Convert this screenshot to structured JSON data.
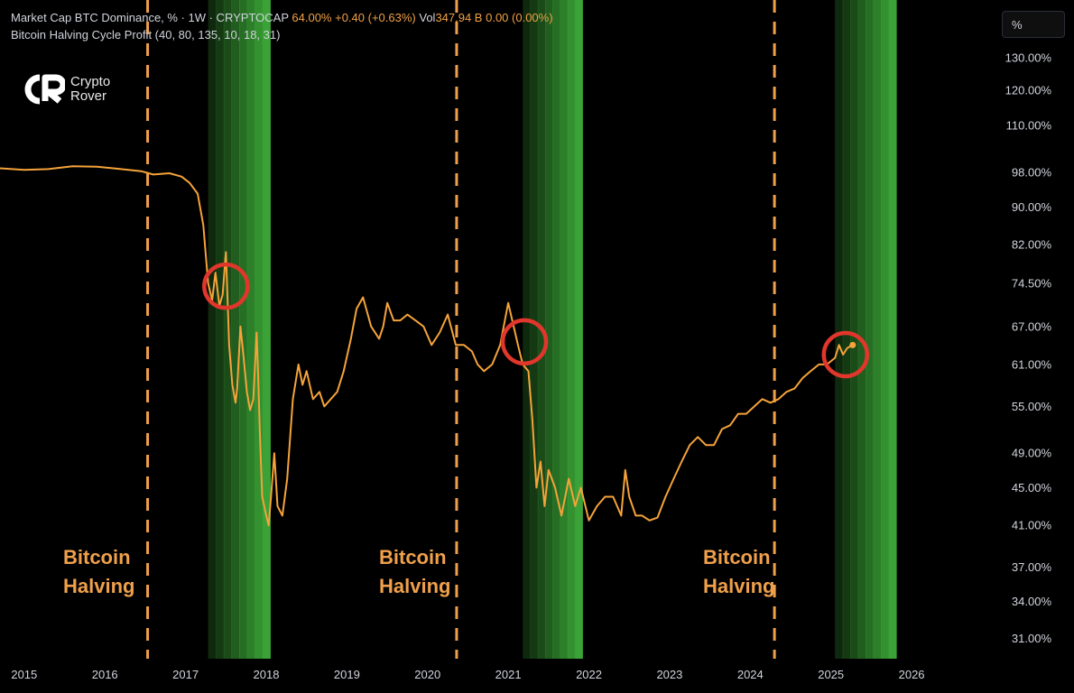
{
  "legend": {
    "line1_prefix": "Market Cap BTC Dominance, % · 1W · CRYPTOCAP",
    "last_value": "64.00%",
    "change": "+0.40 (+0.63%)",
    "vol_label": "Vol",
    "vol_value": "347.94 B",
    "vol_change": "0.00 (0.00%)",
    "line2": "Bitcoin Halving Cycle Profit (40, 80, 135, 10, 18, 31)"
  },
  "logo": {
    "line1": "Crypto",
    "line2": "Rover",
    "icon": "cr-logo-icon"
  },
  "scale_button": "%",
  "halving_labels": [
    {
      "line1": "Bitcoin",
      "line2": "Halving"
    },
    {
      "line1": "Bitcoin",
      "line2": "Halving"
    },
    {
      "line1": "Bitcoin",
      "line2": "Halving"
    }
  ],
  "chart_data": {
    "type": "line",
    "title": "Market Cap BTC Dominance, % · 1W · CRYPTOCAP",
    "y_scale": "log",
    "y_ticks": [
      "130.00%",
      "120.00%",
      "110.00%",
      "98.00%",
      "90.00%",
      "82.00%",
      "74.50%",
      "67.00%",
      "61.00%",
      "55.00%",
      "49.00%",
      "45.00%",
      "41.00%",
      "37.00%",
      "34.00%",
      "31.00%"
    ],
    "y_tick_values": [
      130,
      120,
      110,
      98,
      90,
      82,
      74.5,
      67,
      61,
      55,
      49,
      45,
      41,
      37,
      34,
      31
    ],
    "ylim": [
      29.5,
      150
    ],
    "x_ticks": [
      "2015",
      "2016",
      "2017",
      "2018",
      "2019",
      "2020",
      "2021",
      "2022",
      "2023",
      "2024",
      "2025",
      "2026"
    ],
    "x_tick_values": [
      2015,
      2016,
      2017,
      2018,
      2019,
      2020,
      2021,
      2022,
      2023,
      2024,
      2025,
      2026
    ],
    "xlim": [
      2014.7,
      2026.95
    ],
    "series_color": "#f5a33a",
    "series": [
      {
        "x": [
          2014.7,
          2015.0,
          2015.3,
          2015.6,
          2015.9,
          2016.2,
          2016.45,
          2016.6,
          2016.8,
          2016.95,
          2017.05,
          2017.15,
          2017.22,
          2017.28,
          2017.33,
          2017.37,
          2017.42,
          2017.46,
          2017.5,
          2017.54,
          2017.58,
          2017.62,
          2017.64,
          2017.68,
          2017.72,
          2017.76,
          2017.8,
          2017.84,
          2017.88,
          2017.9,
          2017.92,
          2017.95,
          2018.0,
          2018.03,
          2018.06,
          2018.1,
          2018.14,
          2018.2,
          2018.26,
          2018.33,
          2018.4,
          2018.45,
          2018.5,
          2018.58,
          2018.66,
          2018.72,
          2018.8,
          2018.88,
          2018.96,
          2019.05,
          2019.12,
          2019.2,
          2019.3,
          2019.4,
          2019.45,
          2019.5,
          2019.58,
          2019.66,
          2019.75,
          2019.85,
          2019.95,
          2020.05,
          2020.15,
          2020.25,
          2020.35,
          2020.45,
          2020.55,
          2020.62,
          2020.7,
          2020.8,
          2020.9,
          2021.0,
          2021.05,
          2021.12,
          2021.18,
          2021.25,
          2021.3,
          2021.35,
          2021.4,
          2021.45,
          2021.5,
          2021.58,
          2021.66,
          2021.75,
          2021.83,
          2021.9,
          2022.0,
          2022.1,
          2022.2,
          2022.3,
          2022.4,
          2022.45,
          2022.5,
          2022.58,
          2022.66,
          2022.75,
          2022.85,
          2022.95,
          2023.05,
          2023.15,
          2023.25,
          2023.35,
          2023.45,
          2023.55,
          2023.65,
          2023.75,
          2023.85,
          2023.95,
          2024.05,
          2024.15,
          2024.25,
          2024.35,
          2024.45,
          2024.55,
          2024.65,
          2024.75,
          2024.85,
          2024.95,
          2025.05,
          2025.1,
          2025.15,
          2025.2,
          2025.27
        ],
        "y": [
          99,
          98.6,
          98.8,
          99.5,
          99.4,
          98.8,
          98.3,
          97.5,
          97.8,
          97.0,
          95.5,
          93.0,
          86,
          74.5,
          71.5,
          76.5,
          70.5,
          72.5,
          80.5,
          64,
          58,
          55.5,
          57.5,
          67,
          62,
          57,
          54.5,
          56,
          66,
          59.5,
          52,
          44,
          42,
          41,
          44,
          49,
          43,
          42,
          46,
          56,
          61,
          58,
          60,
          56,
          57,
          55,
          56,
          57,
          60,
          65,
          70,
          72,
          67,
          65,
          67,
          71,
          68,
          68,
          69,
          68,
          67,
          64,
          66,
          69,
          64,
          64,
          63,
          61,
          60,
          61,
          64,
          71,
          68,
          64,
          61,
          60,
          53,
          45,
          48,
          43,
          47,
          45,
          42,
          46,
          43,
          45,
          41.5,
          43,
          44,
          44,
          42,
          47,
          44,
          42,
          42,
          41.5,
          41.8,
          44,
          46,
          48,
          50,
          51,
          50,
          50,
          52,
          52.5,
          54,
          54,
          55,
          56,
          55.5,
          56,
          57,
          57.5,
          59,
          60,
          61,
          61,
          62,
          64,
          62.5,
          63.5,
          64
        ]
      }
    ],
    "halvings": [
      2016.53,
      2020.36,
      2024.3
    ],
    "profit_bands": [
      {
        "start": 2017.28,
        "end": 2018.05
      },
      {
        "start": 2021.18,
        "end": 2021.92
      },
      {
        "start": 2025.05,
        "end": 2025.81
      }
    ],
    "highlight_circles": [
      {
        "x": 2017.5,
        "y": 74
      },
      {
        "x": 2021.2,
        "y": 64.5
      },
      {
        "x": 2025.18,
        "y": 62.5
      }
    ],
    "band_color": "#3aa236",
    "halving_line_color": "#f0a04b",
    "circle_color": "#e0362c"
  }
}
